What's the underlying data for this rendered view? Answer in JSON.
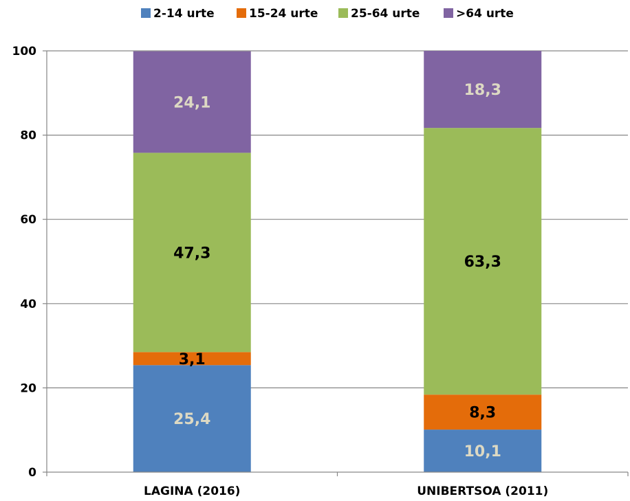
{
  "chart_data": {
    "type": "bar",
    "stacked": true,
    "categories": [
      "LAGINA (2016)",
      "UNIBERTSOA (2011)"
    ],
    "series": [
      {
        "name": "2-14 urte",
        "values": [
          25.4,
          10.1
        ],
        "labels": [
          "25,4",
          "10,1"
        ],
        "color": "#4f81bd",
        "label_color": "#ddd9c3"
      },
      {
        "name": "15-24 urte",
        "values": [
          3.1,
          8.3
        ],
        "labels": [
          "3,1",
          "8,3"
        ],
        "color": "#e46c0a",
        "label_color": "#000000"
      },
      {
        "name": "25-64 urte",
        "values": [
          47.3,
          63.3
        ],
        "labels": [
          "47,3",
          "63,3"
        ],
        "color": "#9bbb59",
        "label_color": "#000000"
      },
      {
        "name": ">64 urte",
        "values": [
          24.1,
          18.3
        ],
        "labels": [
          "24,1",
          "18,3"
        ],
        "color": "#8064a2",
        "label_color": "#ddd9c3"
      }
    ],
    "ylim": [
      0,
      100
    ],
    "yticks": [
      0,
      20,
      40,
      60,
      80,
      100
    ],
    "ytick_labels": [
      "0",
      "20",
      "40",
      "60",
      "80",
      "100"
    ],
    "grid": true,
    "legend_position": "top",
    "title": "",
    "xlabel": "",
    "ylabel": ""
  }
}
